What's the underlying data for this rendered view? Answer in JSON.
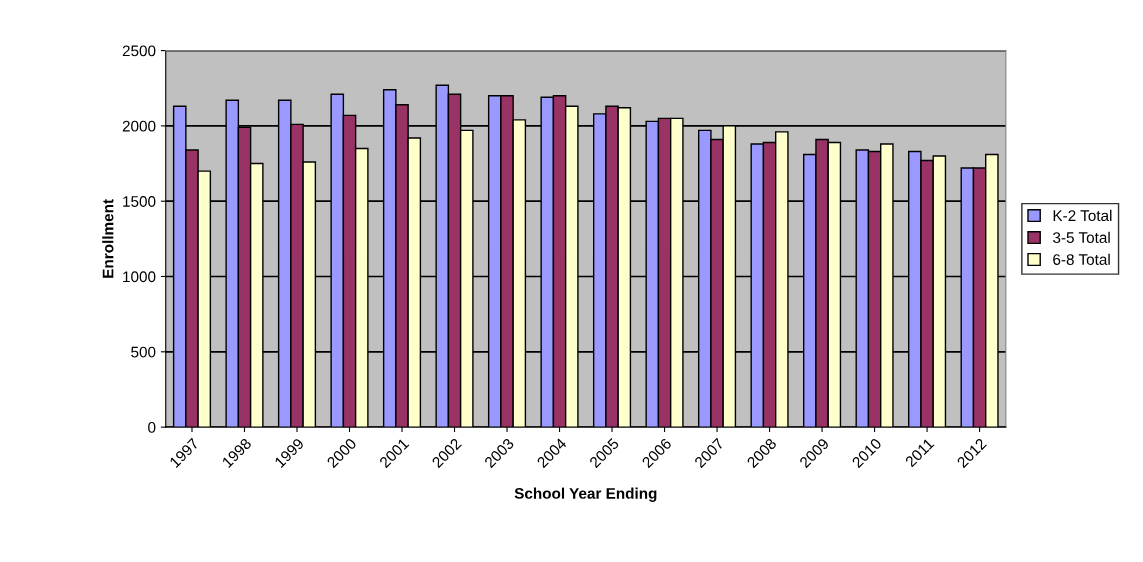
{
  "chart_data": {
    "type": "bar",
    "xlabel": "School Year Ending",
    "ylabel": "Enrollment",
    "categories": [
      "1997",
      "1998",
      "1999",
      "2000",
      "2001",
      "2002",
      "2003",
      "2004",
      "2005",
      "2006",
      "2007",
      "2008",
      "2009",
      "2010",
      "2011",
      "2012"
    ],
    "series": [
      {
        "name": "K-2 Total",
        "color": "#9999ff",
        "values": [
          2130,
          2170,
          2170,
          2210,
          2240,
          2270,
          2200,
          2190,
          2080,
          2030,
          1970,
          1880,
          1810,
          1840,
          1830,
          1720
        ]
      },
      {
        "name": "3-5 Total",
        "color": "#993366",
        "values": [
          1840,
          1990,
          2010,
          2070,
          2140,
          2210,
          2200,
          2200,
          2130,
          2050,
          1910,
          1890,
          1910,
          1830,
          1770,
          1720
        ]
      },
      {
        "name": "6-8 Total",
        "color": "#ffffcc",
        "values": [
          1700,
          1750,
          1760,
          1850,
          1920,
          1970,
          2040,
          2130,
          2120,
          2050,
          2000,
          1960,
          1890,
          1880,
          1800,
          1810
        ]
      }
    ],
    "ylim": [
      0,
      2500
    ],
    "yticks": [
      0,
      500,
      1000,
      1500,
      2000,
      2500
    ],
    "grid": "y",
    "legend": "right"
  }
}
